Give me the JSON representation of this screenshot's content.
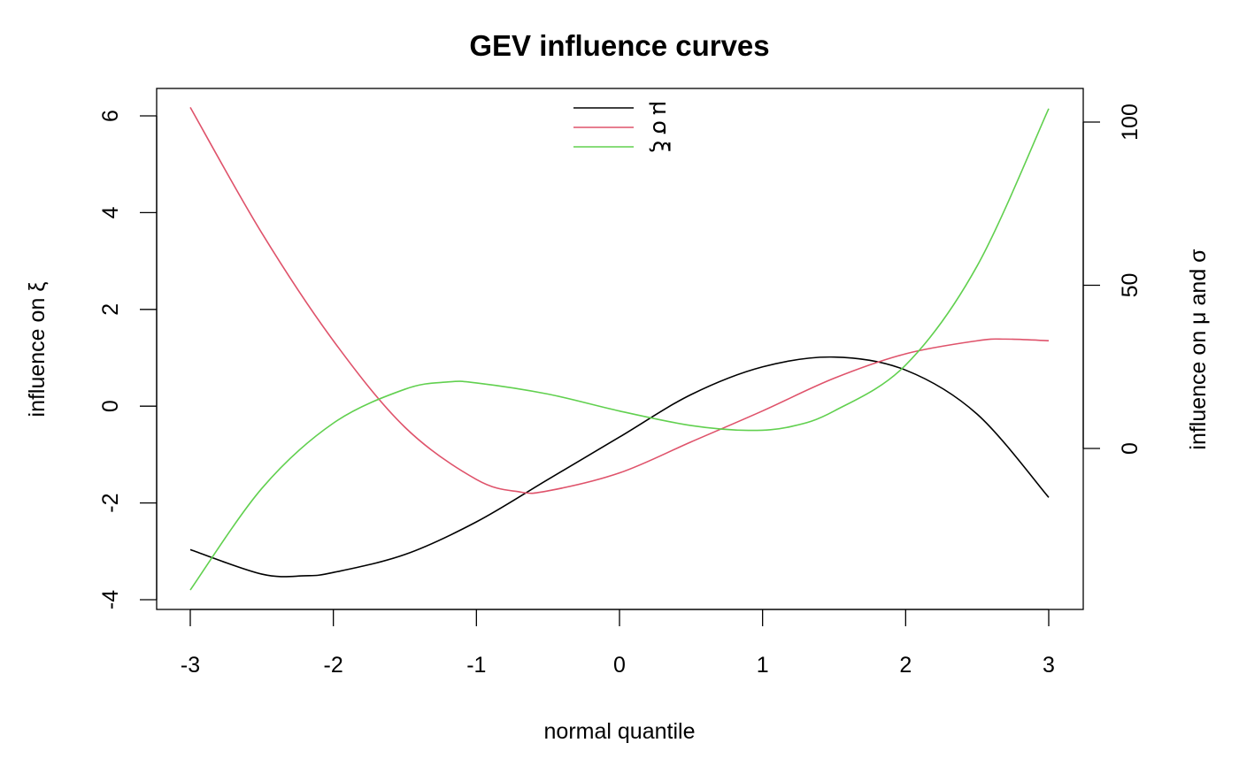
{
  "chart_data": {
    "type": "line",
    "title": "GEV influence curves",
    "xlabel": "normal quantile",
    "ylabel_left": "influence on  ξ",
    "ylabel_right": "influence on  μ  and  σ",
    "xlim": [
      -3,
      3
    ],
    "ylim_left": [
      -4,
      6
    ],
    "ylim_right": [
      -40,
      105
    ],
    "x_ticks": [
      "-3",
      "-2",
      "-1",
      "0",
      "1",
      "2",
      "3"
    ],
    "y_ticks_left": [
      "-4",
      "-2",
      "0",
      "2",
      "4",
      "6"
    ],
    "y_ticks_right": [
      "0",
      "50",
      "100"
    ],
    "legend_position": "top",
    "series": [
      {
        "name": "μ",
        "color": "#000000",
        "axis": "right",
        "x": [
          -3,
          -2.5,
          -2.2,
          -2,
          -1.5,
          -1,
          -0.5,
          0,
          0.5,
          1,
          1.5,
          2,
          2.5,
          3
        ],
        "y": [
          -31,
          -38.5,
          -39,
          -38,
          -32.5,
          -22.5,
          -9.5,
          3.5,
          16.5,
          25,
          28,
          24,
          10.5,
          -15
        ]
      },
      {
        "name": "σ",
        "color": "#DF536B",
        "axis": "right",
        "x": [
          -3,
          -2.5,
          -2,
          -1.5,
          -1,
          -0.7,
          -0.5,
          0,
          0.5,
          1,
          1.5,
          2,
          2.5,
          2.7,
          3
        ],
        "y": [
          104.5,
          66,
          33,
          6.5,
          -9.5,
          -13.3,
          -13,
          -7.5,
          2,
          11.5,
          21.5,
          29,
          33,
          33.5,
          33
        ]
      },
      {
        "name": "ξ",
        "color": "#61D04F",
        "axis": "left",
        "x": [
          -3,
          -2.5,
          -2,
          -1.5,
          -1.2,
          -1,
          -0.5,
          0,
          0.5,
          0.9,
          1.2,
          1.5,
          2,
          2.5,
          3
        ],
        "y": [
          -3.8,
          -1.7,
          -0.35,
          0.35,
          0.5,
          0.48,
          0.25,
          -0.1,
          -0.4,
          -0.5,
          -0.42,
          -0.1,
          0.85,
          2.9,
          6.15
        ]
      }
    ]
  }
}
